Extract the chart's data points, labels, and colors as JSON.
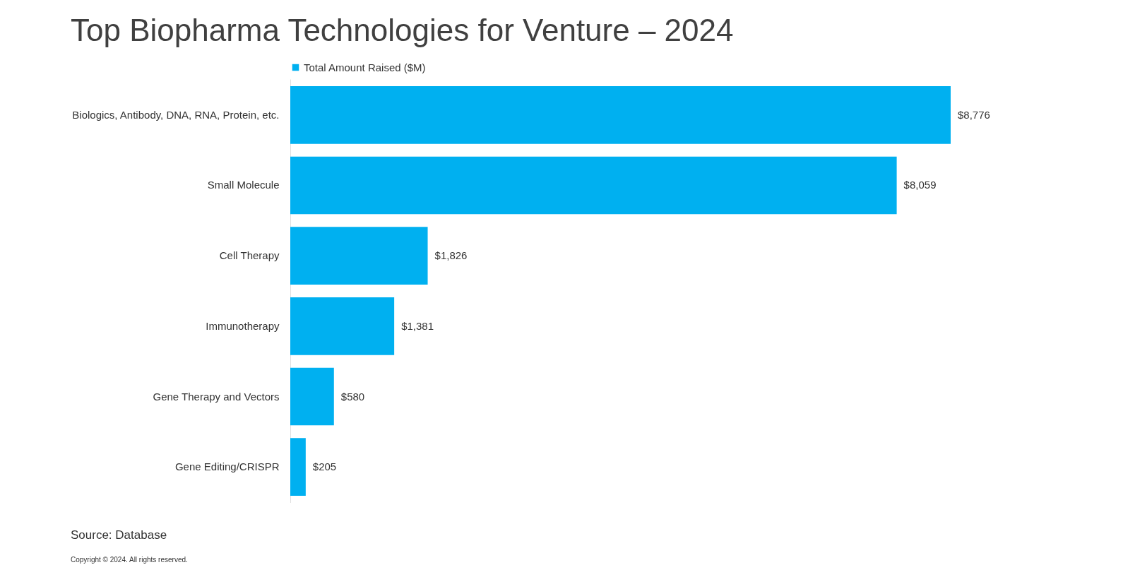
{
  "chart_data": {
    "type": "bar",
    "orientation": "horizontal",
    "title": "Top Biopharma Technologies for Venture – 2024",
    "categories": [
      "Biologics, Antibody, DNA, RNA, Protein, etc.",
      "Small Molecule",
      "Cell Therapy",
      "Immunotherapy",
      "Gene Therapy and Vectors",
      "Gene Editing/CRISPR"
    ],
    "series": [
      {
        "name": "Total Amount Raised ($M)",
        "color": "#00b0f0",
        "values": [
          8776,
          8059,
          1826,
          1381,
          580,
          205
        ],
        "value_labels": [
          "$8,776",
          "$8,059",
          "$1,826",
          "$1,381",
          "$580",
          "$205"
        ]
      }
    ],
    "legend": "top",
    "tick_labels": "y",
    "grid": false,
    "annotations": [
      "Source: Database",
      "Copyright © 2024. All rights reserved."
    ]
  }
}
